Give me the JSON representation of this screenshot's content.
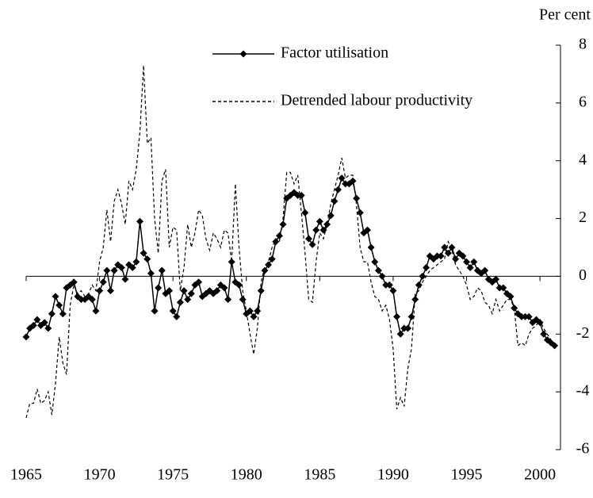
{
  "chart_data": {
    "type": "line",
    "y_label": "Per cent",
    "x": [
      1965,
      1965.25,
      1965.5,
      1965.75,
      1966,
      1966.25,
      1966.5,
      1966.75,
      1967,
      1967.25,
      1967.5,
      1967.75,
      1968,
      1968.25,
      1968.5,
      1968.75,
      1969,
      1969.25,
      1969.5,
      1969.75,
      1970,
      1970.25,
      1970.5,
      1970.75,
      1971,
      1971.25,
      1971.5,
      1971.75,
      1972,
      1972.25,
      1972.5,
      1972.75,
      1973,
      1973.25,
      1973.5,
      1973.75,
      1974,
      1974.25,
      1974.5,
      1974.75,
      1975,
      1975.25,
      1975.5,
      1975.75,
      1976,
      1976.25,
      1976.5,
      1976.75,
      1977,
      1977.25,
      1977.5,
      1977.75,
      1978,
      1978.25,
      1978.5,
      1978.75,
      1979,
      1979.25,
      1979.5,
      1979.75,
      1980,
      1980.25,
      1980.5,
      1980.75,
      1981,
      1981.25,
      1981.5,
      1981.75,
      1982,
      1982.25,
      1982.5,
      1982.75,
      1983,
      1983.25,
      1983.5,
      1983.75,
      1984,
      1984.25,
      1984.5,
      1984.75,
      1985,
      1985.25,
      1985.5,
      1985.75,
      1986,
      1986.25,
      1986.5,
      1986.75,
      1987,
      1987.25,
      1987.5,
      1987.75,
      1988,
      1988.25,
      1988.5,
      1988.75,
      1989,
      1989.25,
      1989.5,
      1989.75,
      1990,
      1990.25,
      1990.5,
      1990.75,
      1991,
      1991.25,
      1991.5,
      1991.75,
      1992,
      1992.25,
      1992.5,
      1992.75,
      1993,
      1993.25,
      1993.5,
      1993.75,
      1994,
      1994.25,
      1994.5,
      1994.75,
      1995,
      1995.25,
      1995.5,
      1995.75,
      1996,
      1996.25,
      1996.5,
      1996.75,
      1997,
      1997.25,
      1997.5,
      1997.75,
      1998,
      1998.25,
      1998.5,
      1998.75,
      1999,
      1999.25,
      1999.5,
      1999.75,
      2000,
      2000.25,
      2000.5,
      2000.75,
      2001
    ],
    "series": [
      {
        "name": "Factor utilisation",
        "color": "#000000",
        "style": "solid",
        "marker": "diamond",
        "values": [
          -2.1,
          -1.8,
          -1.7,
          -1.5,
          -1.7,
          -1.6,
          -1.8,
          -1.3,
          -0.7,
          -1.0,
          -1.3,
          -0.4,
          -0.3,
          -0.2,
          -0.7,
          -0.8,
          -0.8,
          -0.7,
          -0.8,
          -1.2,
          -0.5,
          -0.2,
          0.2,
          -0.5,
          0.2,
          0.4,
          0.3,
          -0.1,
          0.4,
          0.3,
          0.5,
          1.9,
          0.8,
          0.6,
          0.1,
          -1.2,
          -0.4,
          0.2,
          -0.6,
          -0.5,
          -1.2,
          -1.4,
          -0.9,
          -0.5,
          -0.8,
          -0.6,
          -0.3,
          -0.2,
          -0.7,
          -0.6,
          -0.5,
          -0.6,
          -0.5,
          -0.3,
          -0.4,
          -0.8,
          0.5,
          -0.2,
          -0.3,
          -0.8,
          -1.3,
          -1.2,
          -1.4,
          -1.2,
          -0.5,
          0.2,
          0.4,
          0.6,
          1.2,
          1.4,
          1.8,
          2.7,
          2.8,
          2.9,
          2.8,
          2.8,
          2.2,
          1.3,
          1.1,
          1.6,
          1.9,
          1.6,
          1.8,
          2.1,
          2.6,
          3.0,
          3.4,
          3.2,
          3.2,
          3.3,
          2.7,
          2.2,
          1.5,
          1.6,
          1.0,
          0.5,
          0.2,
          0.0,
          -0.3,
          -0.3,
          -0.5,
          -1.4,
          -2.0,
          -1.8,
          -1.8,
          -1.4,
          -0.8,
          -0.3,
          0.0,
          0.3,
          0.7,
          0.6,
          0.7,
          0.7,
          1.0,
          0.8,
          1.0,
          0.6,
          0.8,
          0.7,
          0.5,
          0.3,
          0.5,
          0.2,
          0.1,
          0.2,
          -0.1,
          -0.2,
          -0.1,
          -0.4,
          -0.4,
          -0.6,
          -0.7,
          -1.1,
          -1.3,
          -1.4,
          -1.4,
          -1.4,
          -1.6,
          -1.5,
          -1.6,
          -2.0,
          -2.2,
          -2.3,
          -2.4
        ]
      },
      {
        "name": "Detrended labour productivity",
        "color": "#000000",
        "style": "dashed",
        "values": [
          -4.9,
          -4.4,
          -4.4,
          -3.9,
          -4.4,
          -4.3,
          -4.0,
          -4.8,
          -3.7,
          -2.1,
          -3.0,
          -3.4,
          -1.0,
          -0.3,
          -0.6,
          -0.5,
          -0.7,
          -0.6,
          -0.3,
          -0.5,
          0.5,
          1.0,
          2.3,
          1.2,
          2.6,
          3.0,
          2.5,
          1.8,
          3.3,
          3.0,
          3.7,
          5.0,
          7.3,
          4.6,
          4.8,
          2.0,
          0.8,
          3.3,
          3.7,
          1.0,
          1.7,
          1.6,
          -0.5,
          0.3,
          1.8,
          1.0,
          1.5,
          2.3,
          2.1,
          1.3,
          0.9,
          1.5,
          1.3,
          1.0,
          1.6,
          1.5,
          0.5,
          3.2,
          1.0,
          -0.5,
          -1.2,
          -2.0,
          -2.7,
          -1.8,
          -0.2,
          0.3,
          0.5,
          1.0,
          1.3,
          1.2,
          2.0,
          3.6,
          3.6,
          3.2,
          3.5,
          2.2,
          0.8,
          -0.8,
          -0.9,
          0.5,
          1.5,
          1.3,
          1.8,
          2.5,
          3.0,
          3.5,
          4.1,
          3.4,
          3.5,
          3.5,
          2.5,
          1.0,
          0.5,
          0.5,
          -0.2,
          -0.7,
          -0.8,
          -1.2,
          -1.0,
          -1.5,
          -2.5,
          -4.6,
          -4.2,
          -4.5,
          -3.2,
          -2.5,
          -0.6,
          -0.5,
          -0.2,
          0.0,
          0.2,
          0.3,
          0.4,
          0.5,
          0.6,
          1.2,
          0.9,
          0.4,
          0.2,
          0.0,
          -0.3,
          -0.8,
          -0.7,
          -0.4,
          -0.5,
          -0.9,
          -1.0,
          -1.3,
          -0.8,
          -1.2,
          -1.0,
          -0.8,
          -0.8,
          -1.1,
          -2.4,
          -2.3,
          -2.4,
          -2.0,
          -1.8,
          -1.7,
          -1.5,
          -1.8,
          -2.0,
          -2.2,
          null
        ]
      }
    ],
    "xlim": [
      1965,
      2001.4
    ],
    "xticks": [
      1965,
      1970,
      1975,
      1980,
      1985,
      1990,
      1995,
      2000
    ],
    "ylim": [
      -6,
      8
    ],
    "yticks": [
      -6,
      -4,
      -2,
      0,
      2,
      4,
      6,
      8
    ],
    "y_axis_side": "right",
    "legend": "upper center",
    "grid": false
  }
}
